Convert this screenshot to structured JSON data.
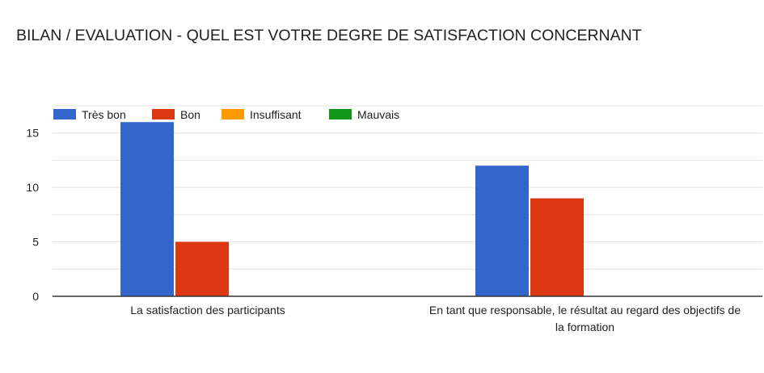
{
  "chart_data": {
    "type": "bar",
    "title": "BILAN / EVALUATION - QUEL EST VOTRE DEGRE DE SATISFACTION CONCERNANT",
    "xlabel": "",
    "ylabel": "",
    "categories": [
      [
        "La satisfaction des participants"
      ],
      [
        "En tant que responsable, le résultat au regard des objectifs de",
        "la formation"
      ]
    ],
    "series": [
      {
        "name": "Très bon",
        "color": "#3366cc",
        "values": [
          16,
          12
        ]
      },
      {
        "name": "Bon",
        "color": "#dc3912",
        "values": [
          5,
          9
        ]
      },
      {
        "name": "Insuffisant",
        "color": "#ff9900",
        "values": [
          0,
          0
        ]
      },
      {
        "name": "Mauvais",
        "color": "#109618",
        "values": [
          0,
          0
        ]
      }
    ],
    "ylim": [
      0,
      17.5
    ],
    "yticks": [
      0,
      5,
      10,
      15
    ],
    "grid": true,
    "legend_position": "top-left"
  }
}
